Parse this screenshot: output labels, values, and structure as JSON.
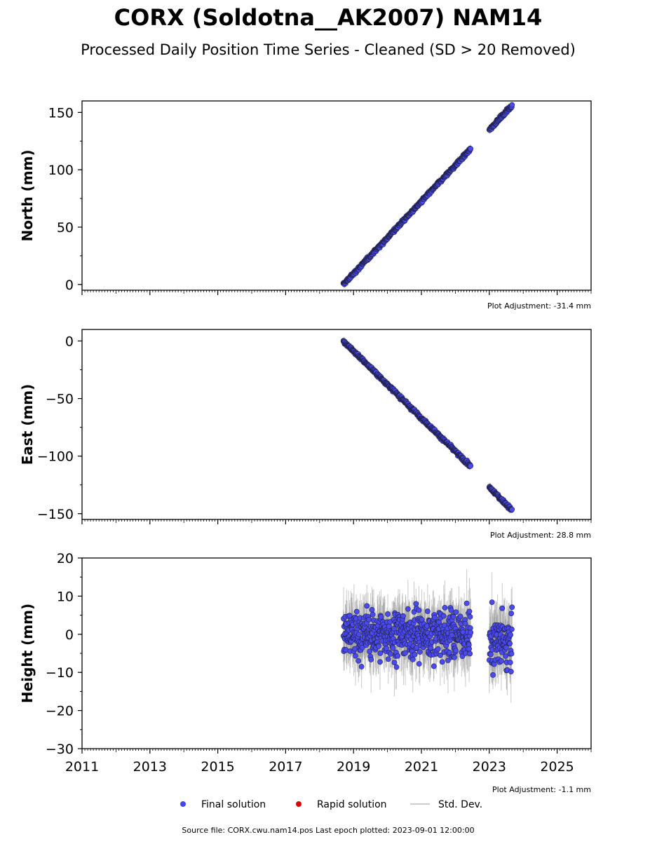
{
  "title": "CORX (Soldotna__AK2007) NAM14",
  "subtitle": "Processed Daily Position Time Series - Cleaned (SD > 20 Removed)",
  "footer": "Source file: CORX.cwu.nam14.pos  Last epoch plotted: 2023-09-01 12:00:00",
  "legend": [
    {
      "label": "Final solution",
      "color": "#4444ee",
      "marker": "circle"
    },
    {
      "label": "Rapid solution",
      "color": "#dd0000",
      "marker": "circle"
    },
    {
      "label": "Std. Dev.",
      "color": "#bbbbbb",
      "marker": "line"
    }
  ],
  "colors": {
    "final": "#4a4af0",
    "marker_edge": "#20204a",
    "stddev": "#888888"
  },
  "chart_data": [
    {
      "type": "scatter",
      "ylabel": "North (mm)",
      "adjustment": "Plot Adjustment: -31.4 mm",
      "xlim": [
        2011,
        2026
      ],
      "ylim": [
        -5,
        160
      ],
      "yticks": [
        "0",
        "50",
        "100",
        "150"
      ],
      "ytick_values": [
        0,
        50,
        100,
        150
      ],
      "show_xlabels": false,
      "segments": [
        {
          "x_start": 2018.7,
          "x_end": 2022.45,
          "y_start": 0,
          "y_end": 118,
          "noise": 1.0
        },
        {
          "x_start": 2023.0,
          "x_end": 2023.67,
          "y_start": 135,
          "y_end": 156,
          "noise": 1.0
        }
      ]
    },
    {
      "type": "scatter",
      "ylabel": "East (mm)",
      "adjustment": "Plot Adjustment: 28.8 mm",
      "xlim": [
        2011,
        2026
      ],
      "ylim": [
        -155,
        10
      ],
      "yticks": [
        "0",
        "−50",
        "−100",
        "−150"
      ],
      "ytick_values": [
        0,
        -50,
        -100,
        -150
      ],
      "show_xlabels": false,
      "segments": [
        {
          "x_start": 2018.7,
          "x_end": 2022.45,
          "y_start": 0,
          "y_end": -109,
          "noise": 1.0
        },
        {
          "x_start": 2023.0,
          "x_end": 2023.67,
          "y_start": -127,
          "y_end": -147,
          "noise": 1.0
        }
      ]
    },
    {
      "type": "scatter",
      "ylabel": "Height (mm)",
      "adjustment": "Plot Adjustment: -1.1 mm",
      "xlim": [
        2011,
        2026
      ],
      "ylim": [
        -30,
        20
      ],
      "yticks": [
        "20",
        "10",
        "0",
        "−10",
        "−20",
        "−30"
      ],
      "ytick_values": [
        20,
        10,
        0,
        -10,
        -20,
        -30
      ],
      "show_xlabels": true,
      "xticks": [
        "2011",
        "2013",
        "2015",
        "2017",
        "2019",
        "2021",
        "2023",
        "2025"
      ],
      "xtick_values": [
        2011,
        2013,
        2015,
        2017,
        2019,
        2021,
        2023,
        2025
      ],
      "segments": [
        {
          "x_start": 2018.7,
          "x_end": 2022.45,
          "y_start": 0,
          "y_end": 0,
          "noise": 4.5
        },
        {
          "x_start": 2023.0,
          "x_end": 2023.67,
          "y_start": -2,
          "y_end": -2,
          "noise": 5.5
        }
      ]
    }
  ]
}
